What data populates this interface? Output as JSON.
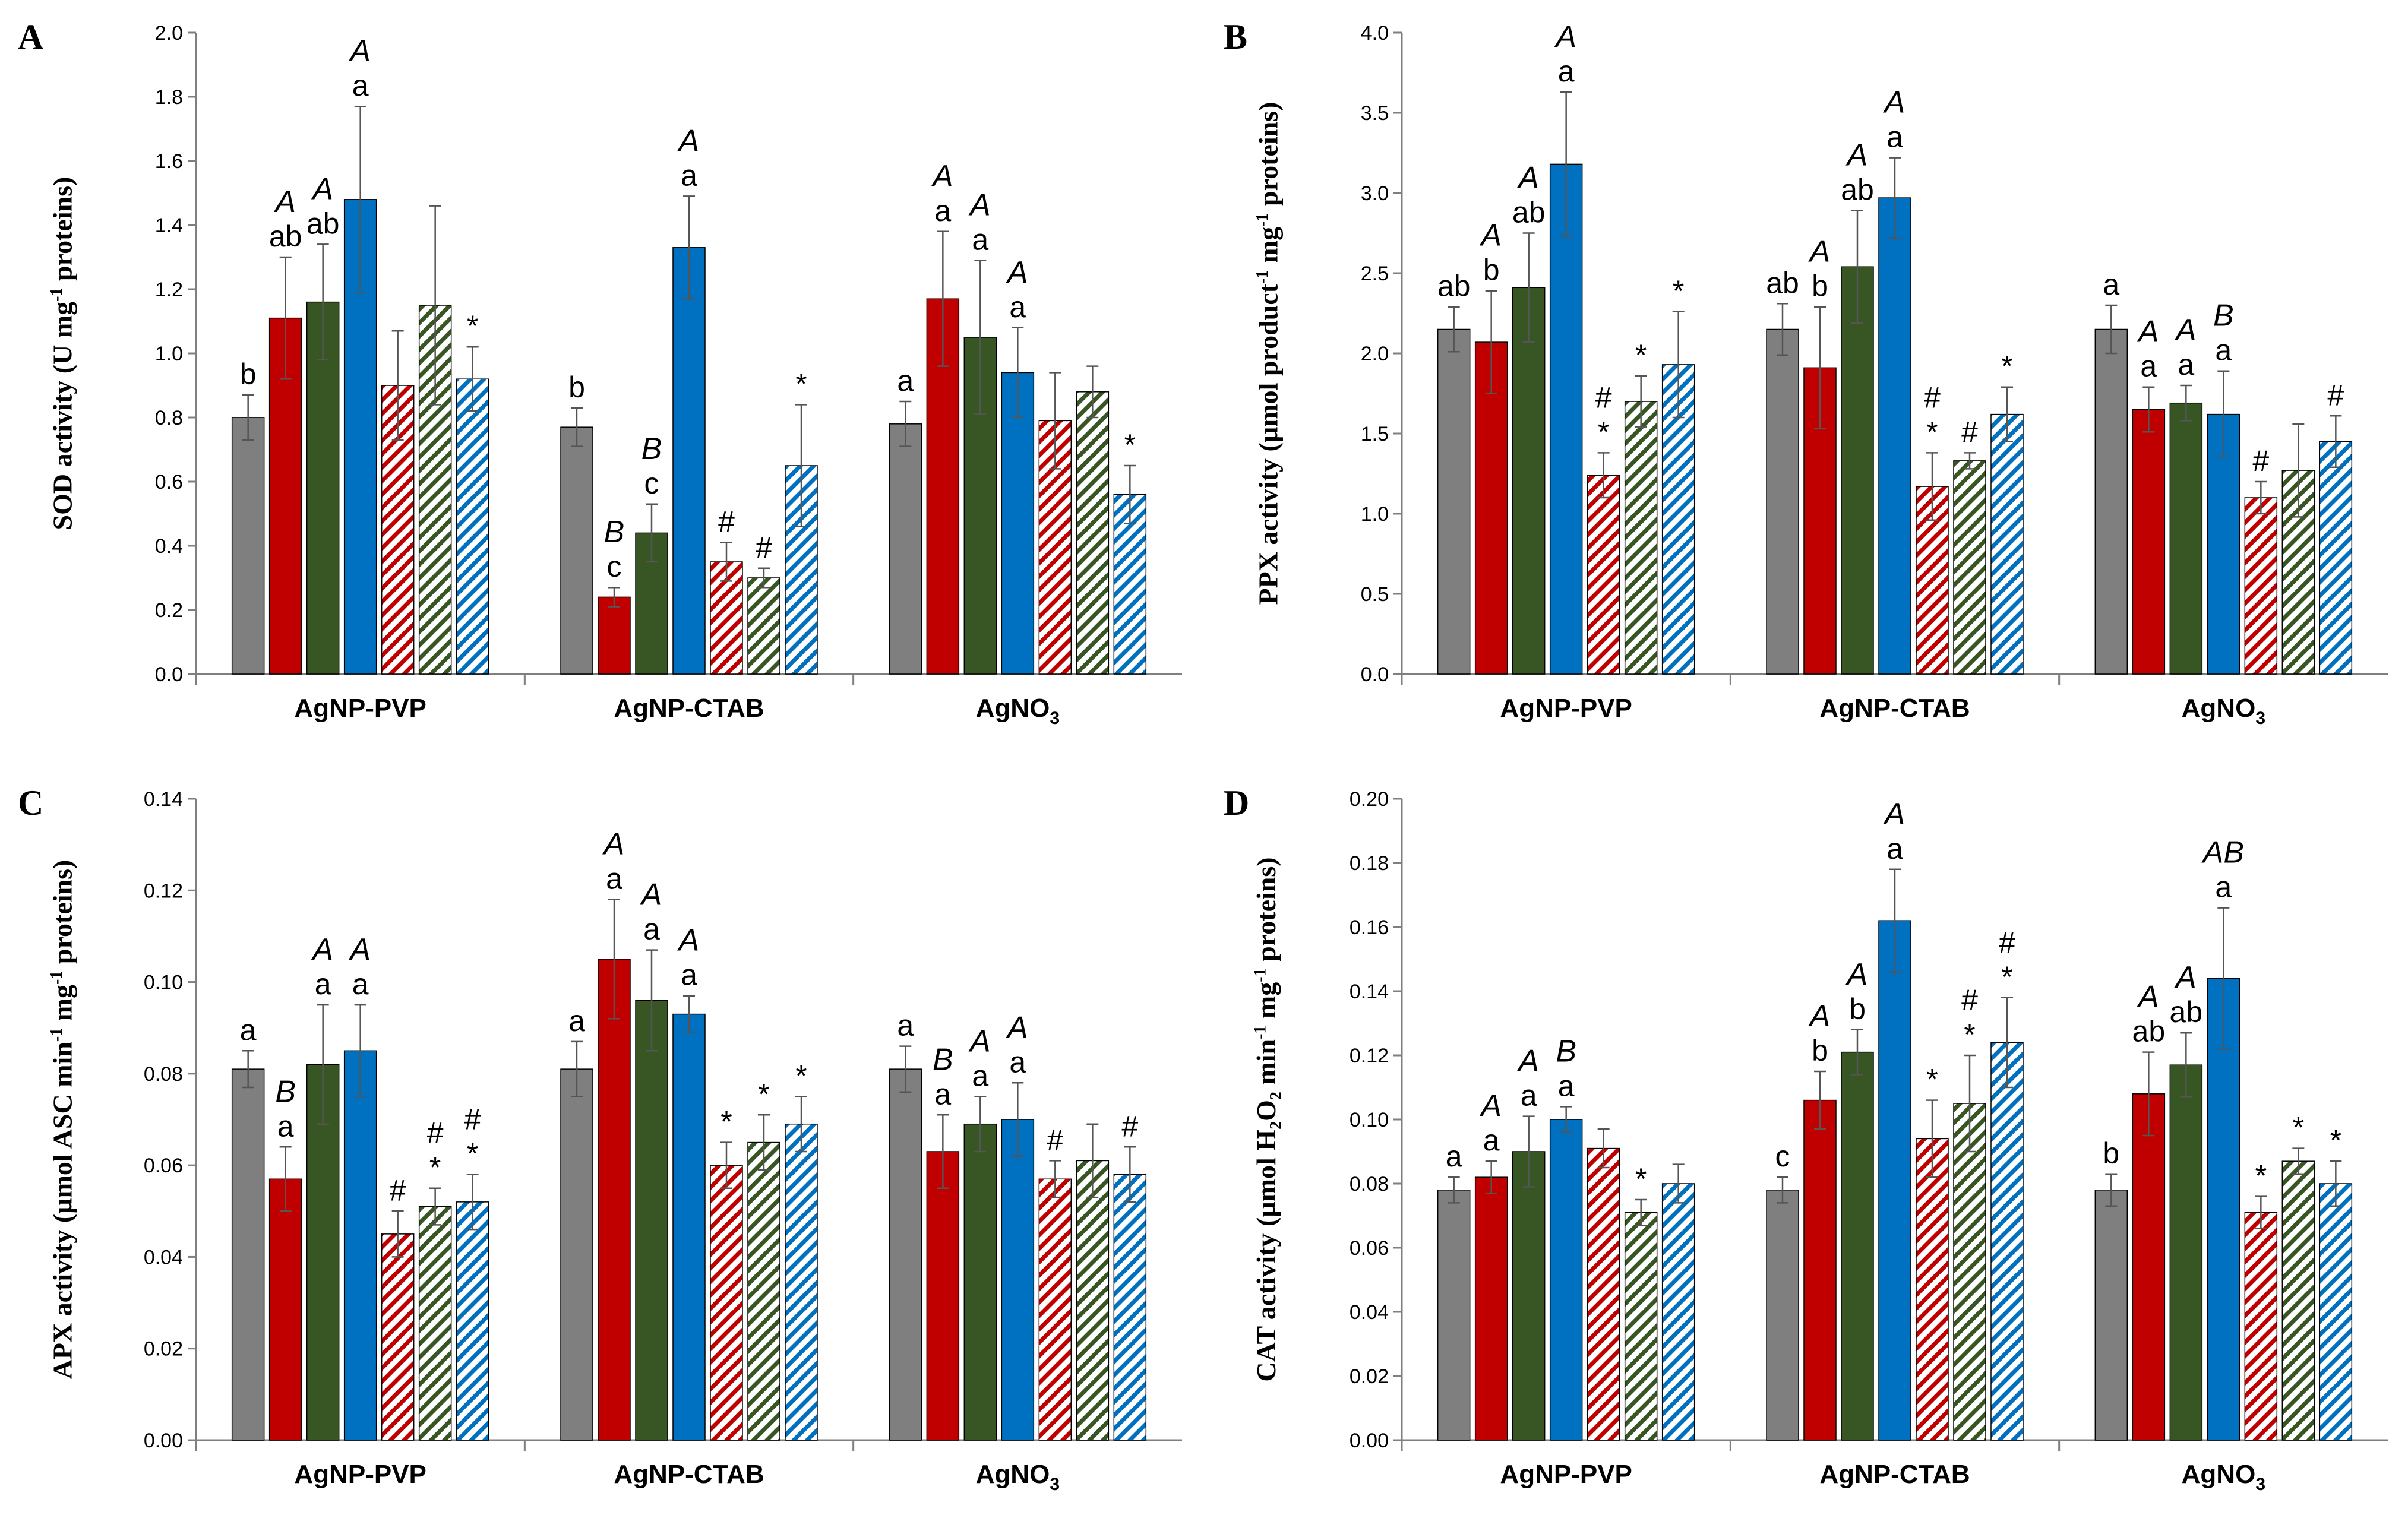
{
  "legend_colors": {
    "gray": "#7f7f7f",
    "red": "#c00000",
    "green": "#375623",
    "blue": "#0070c0"
  },
  "chart_data": [
    {
      "type": "bar",
      "panel": "A",
      "ylabel_html": "SOD activity (U mg<tspan baseline-shift='super' font-size='30'>-1</tspan> proteins)",
      "ylabel": "SOD activity (U mg-1 proteins)",
      "ylim": [
        0,
        2.0
      ],
      "ticks": [
        "0.0",
        "0.2",
        "0.4",
        "0.6",
        "0.8",
        "1.0",
        "1.2",
        "1.4",
        "1.6",
        "1.8",
        "2.0"
      ],
      "categories": [
        "AgNP-PVP",
        "AgNP-CTAB",
        "AgNO3"
      ],
      "series": [
        {
          "name": "control",
          "color": "gray",
          "hatch": false,
          "values": [
            0.8,
            0.77,
            0.78
          ],
          "errors": [
            0.07,
            0.06,
            0.07
          ]
        },
        {
          "name": "red solid",
          "color": "red",
          "hatch": false,
          "values": [
            1.11,
            0.24,
            1.17
          ],
          "errors": [
            0.19,
            0.03,
            0.21
          ]
        },
        {
          "name": "green solid",
          "color": "green",
          "hatch": false,
          "values": [
            1.16,
            0.44,
            1.05
          ],
          "errors": [
            0.18,
            0.09,
            0.24
          ]
        },
        {
          "name": "blue solid",
          "color": "blue",
          "hatch": false,
          "values": [
            1.48,
            1.33,
            0.94
          ],
          "errors": [
            0.29,
            0.16,
            0.14
          ]
        },
        {
          "name": "red hatched",
          "color": "red",
          "hatch": true,
          "values": [
            0.9,
            0.35,
            0.79
          ],
          "errors": [
            0.17,
            0.06,
            0.15
          ]
        },
        {
          "name": "green hatched",
          "color": "green",
          "hatch": true,
          "values": [
            1.15,
            0.3,
            0.88
          ],
          "errors": [
            0.31,
            0.03,
            0.08
          ]
        },
        {
          "name": "blue hatched",
          "color": "blue",
          "hatch": true,
          "values": [
            0.92,
            0.65,
            0.56
          ],
          "errors": [
            0.1,
            0.19,
            0.09
          ]
        }
      ],
      "annotations": [
        [
          [
            "b"
          ],
          [
            "b"
          ],
          [
            "a"
          ]
        ],
        [
          [
            "A",
            "ab"
          ],
          [
            "B",
            "c"
          ],
          [
            "A",
            "a"
          ]
        ],
        [
          [
            "A",
            "ab"
          ],
          [
            "B",
            "c"
          ],
          [
            "A",
            "a"
          ]
        ],
        [
          [
            "A",
            "a"
          ],
          [
            "A",
            "a"
          ],
          [
            "A",
            "a"
          ]
        ],
        [
          [],
          [
            "#"
          ],
          []
        ],
        [
          [],
          [
            "#"
          ],
          []
        ],
        [
          [
            "*"
          ],
          [
            "*"
          ],
          [
            "*"
          ]
        ]
      ]
    },
    {
      "type": "bar",
      "panel": "B",
      "ylabel_html": "PPX activity (µmol product<tspan baseline-shift='super' font-size='30'>-1</tspan> mg<tspan baseline-shift='super' font-size='30'>-1</tspan> proteins)",
      "ylabel": "PPX activity (µmol product-1 mg-1 proteins)",
      "ylim": [
        0,
        4.0
      ],
      "ticks": [
        "0.0",
        "0.5",
        "1.0",
        "1.5",
        "2.0",
        "2.5",
        "3.0",
        "3.5",
        "4.0"
      ],
      "categories": [
        "AgNP-PVP",
        "AgNP-CTAB",
        "AgNO3"
      ],
      "series": [
        {
          "name": "control",
          "color": "gray",
          "hatch": false,
          "values": [
            2.15,
            2.15,
            2.15
          ],
          "errors": [
            0.14,
            0.16,
            0.15
          ]
        },
        {
          "name": "red solid",
          "color": "red",
          "hatch": false,
          "values": [
            2.07,
            1.91,
            1.65
          ],
          "errors": [
            0.32,
            0.38,
            0.14
          ]
        },
        {
          "name": "green solid",
          "color": "green",
          "hatch": false,
          "values": [
            2.41,
            2.54,
            1.69
          ],
          "errors": [
            0.34,
            0.35,
            0.11
          ]
        },
        {
          "name": "blue solid",
          "color": "blue",
          "hatch": false,
          "values": [
            3.18,
            2.97,
            1.62
          ],
          "errors": [
            0.45,
            0.25,
            0.27
          ]
        },
        {
          "name": "red hatched",
          "color": "red",
          "hatch": true,
          "values": [
            1.24,
            1.17,
            1.1
          ],
          "errors": [
            0.14,
            0.21,
            0.1
          ]
        },
        {
          "name": "green hatched",
          "color": "green",
          "hatch": true,
          "values": [
            1.7,
            1.33,
            1.27
          ],
          "errors": [
            0.16,
            0.05,
            0.29
          ]
        },
        {
          "name": "blue hatched",
          "color": "blue",
          "hatch": true,
          "values": [
            1.93,
            1.62,
            1.45
          ],
          "errors": [
            0.33,
            0.17,
            0.16
          ]
        }
      ],
      "annotations": [
        [
          [
            "ab"
          ],
          [
            "ab"
          ],
          [
            "a"
          ]
        ],
        [
          [
            "A",
            "b"
          ],
          [
            "A",
            "b"
          ],
          [
            "A",
            "a"
          ]
        ],
        [
          [
            "A",
            "ab"
          ],
          [
            "A",
            "ab"
          ],
          [
            "A",
            "a"
          ]
        ],
        [
          [
            "A",
            "a"
          ],
          [
            "A",
            "a"
          ],
          [
            "B",
            "a"
          ]
        ],
        [
          [
            "#",
            "*"
          ],
          [
            "#",
            "*"
          ],
          [
            "#"
          ]
        ],
        [
          [
            "*"
          ],
          [
            "#"
          ],
          []
        ],
        [
          [
            "*"
          ],
          [
            "*"
          ],
          [
            "#"
          ]
        ]
      ]
    },
    {
      "type": "bar",
      "panel": "C",
      "ylabel_html": "APX activity (µmol ASC min<tspan baseline-shift='super' font-size='30'>-1</tspan> mg<tspan baseline-shift='super' font-size='30'>-1</tspan> proteins)",
      "ylabel": "APX activity (µmol ASC min-1 mg-1 proteins)",
      "ylim": [
        0,
        0.14
      ],
      "ticks": [
        "0.00",
        "0.02",
        "0.04",
        "0.06",
        "0.08",
        "0.10",
        "0.12",
        "0.14"
      ],
      "categories": [
        "AgNP-PVP",
        "AgNP-CTAB",
        "AgNO3"
      ],
      "series": [
        {
          "name": "control",
          "color": "gray",
          "hatch": false,
          "values": [
            0.081,
            0.081,
            0.081
          ],
          "errors": [
            0.004,
            0.006,
            0.005
          ]
        },
        {
          "name": "red solid",
          "color": "red",
          "hatch": false,
          "values": [
            0.057,
            0.105,
            0.063
          ],
          "errors": [
            0.007,
            0.013,
            0.008
          ]
        },
        {
          "name": "green solid",
          "color": "green",
          "hatch": false,
          "values": [
            0.082,
            0.096,
            0.069
          ],
          "errors": [
            0.013,
            0.011,
            0.006
          ]
        },
        {
          "name": "blue solid",
          "color": "blue",
          "hatch": false,
          "values": [
            0.085,
            0.093,
            0.07
          ],
          "errors": [
            0.01,
            0.004,
            0.008
          ]
        },
        {
          "name": "red hatched",
          "color": "red",
          "hatch": true,
          "values": [
            0.045,
            0.06,
            0.057
          ],
          "errors": [
            0.005,
            0.005,
            0.004
          ]
        },
        {
          "name": "green hatched",
          "color": "green",
          "hatch": true,
          "values": [
            0.051,
            0.065,
            0.061
          ],
          "errors": [
            0.004,
            0.006,
            0.008
          ]
        },
        {
          "name": "blue hatched",
          "color": "blue",
          "hatch": true,
          "values": [
            0.052,
            0.069,
            0.058
          ],
          "errors": [
            0.006,
            0.006,
            0.006
          ]
        }
      ],
      "annotations": [
        [
          [
            "a"
          ],
          [
            "a"
          ],
          [
            "a"
          ]
        ],
        [
          [
            "B",
            "a"
          ],
          [
            "A",
            "a"
          ],
          [
            "B",
            "a"
          ]
        ],
        [
          [
            "A",
            "a"
          ],
          [
            "A",
            "a"
          ],
          [
            "A",
            "a"
          ]
        ],
        [
          [
            "A",
            "a"
          ],
          [
            "A",
            "a"
          ],
          [
            "A",
            "a"
          ]
        ],
        [
          [
            "#"
          ],
          [
            "*"
          ],
          [
            "#"
          ]
        ],
        [
          [
            "#",
            "*"
          ],
          [
            "*"
          ],
          []
        ],
        [
          [
            "#",
            "*"
          ],
          [
            "*"
          ],
          [
            "#"
          ]
        ]
      ]
    },
    {
      "type": "bar",
      "panel": "D",
      "ylabel_html": "CAT activity (µmol H<tspan baseline-shift='sub' font-size='30'>2</tspan>O<tspan baseline-shift='sub' font-size='30'>2</tspan> min<tspan baseline-shift='super' font-size='30'>-1</tspan> mg<tspan baseline-shift='super' font-size='30'>-1</tspan> proteins)",
      "ylabel": "CAT activity (µmol H2O2 min-1 mg-1 proteins)",
      "ylim": [
        0,
        0.2
      ],
      "ticks": [
        "0.00",
        "0.02",
        "0.04",
        "0.06",
        "0.08",
        "0.10",
        "0.12",
        "0.14",
        "0.16",
        "0.18",
        "0.20"
      ],
      "categories": [
        "AgNP-PVP",
        "AgNP-CTAB",
        "AgNO3"
      ],
      "series": [
        {
          "name": "control",
          "color": "gray",
          "hatch": false,
          "values": [
            0.078,
            0.078,
            0.078
          ],
          "errors": [
            0.004,
            0.004,
            0.005
          ]
        },
        {
          "name": "red solid",
          "color": "red",
          "hatch": false,
          "values": [
            0.082,
            0.106,
            0.108
          ],
          "errors": [
            0.005,
            0.009,
            0.013
          ]
        },
        {
          "name": "green solid",
          "color": "green",
          "hatch": false,
          "values": [
            0.09,
            0.121,
            0.117
          ],
          "errors": [
            0.011,
            0.007,
            0.01
          ]
        },
        {
          "name": "blue solid",
          "color": "blue",
          "hatch": false,
          "values": [
            0.1,
            0.162,
            0.144
          ],
          "errors": [
            0.004,
            0.016,
            0.022
          ]
        },
        {
          "name": "red hatched",
          "color": "red",
          "hatch": true,
          "values": [
            0.091,
            0.094,
            0.071
          ],
          "errors": [
            0.006,
            0.012,
            0.005
          ]
        },
        {
          "name": "green hatched",
          "color": "green",
          "hatch": true,
          "values": [
            0.071,
            0.105,
            0.087
          ],
          "errors": [
            0.004,
            0.015,
            0.004
          ]
        },
        {
          "name": "blue hatched",
          "color": "blue",
          "hatch": true,
          "values": [
            0.08,
            0.124,
            0.08
          ],
          "errors": [
            0.006,
            0.014,
            0.007
          ]
        }
      ],
      "annotations": [
        [
          [
            "a"
          ],
          [
            "c"
          ],
          [
            "b"
          ]
        ],
        [
          [
            "A",
            "a"
          ],
          [
            "A",
            "b"
          ],
          [
            "A",
            "ab"
          ]
        ],
        [
          [
            "A",
            "a"
          ],
          [
            "A",
            "b"
          ],
          [
            "A",
            "ab"
          ]
        ],
        [
          [
            "B",
            "a"
          ],
          [
            "A",
            "a"
          ],
          [
            "AB",
            "a"
          ]
        ],
        [
          [],
          [
            "*"
          ],
          [
            "*"
          ]
        ],
        [
          [
            "*"
          ],
          [
            "#",
            "*"
          ],
          [
            "*"
          ]
        ],
        [
          [],
          [
            "#",
            "*"
          ],
          [
            "*"
          ]
        ]
      ]
    }
  ]
}
